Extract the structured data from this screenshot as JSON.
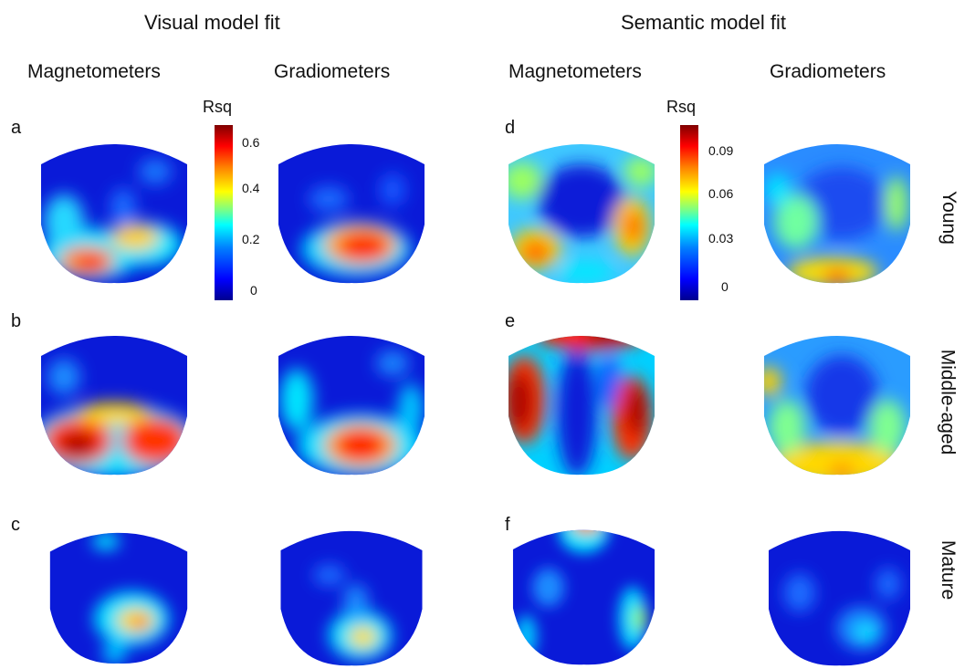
{
  "sections": {
    "visual": "Visual model fit",
    "semantic": "Semantic model fit"
  },
  "columns": {
    "c1": "Magnetometers",
    "c2": "Gradiometers",
    "c3": "Magnetometers",
    "c4": "Gradiometers"
  },
  "rows": {
    "young": "Young",
    "middle": "Middle-aged",
    "mature": "Mature"
  },
  "panels": [
    "a",
    "b",
    "c",
    "d",
    "e",
    "f"
  ],
  "colorbar_visual": {
    "title": "Rsq",
    "ticks": [
      "0.6",
      "0.4",
      "0.2",
      "0"
    ]
  },
  "colorbar_semantic": {
    "title": "Rsq",
    "ticks": [
      "0.09",
      "0.06",
      "0.03",
      "0"
    ]
  },
  "colors": {
    "low": "#00008f",
    "mid": "#00ffff",
    "high": "#800000"
  }
}
